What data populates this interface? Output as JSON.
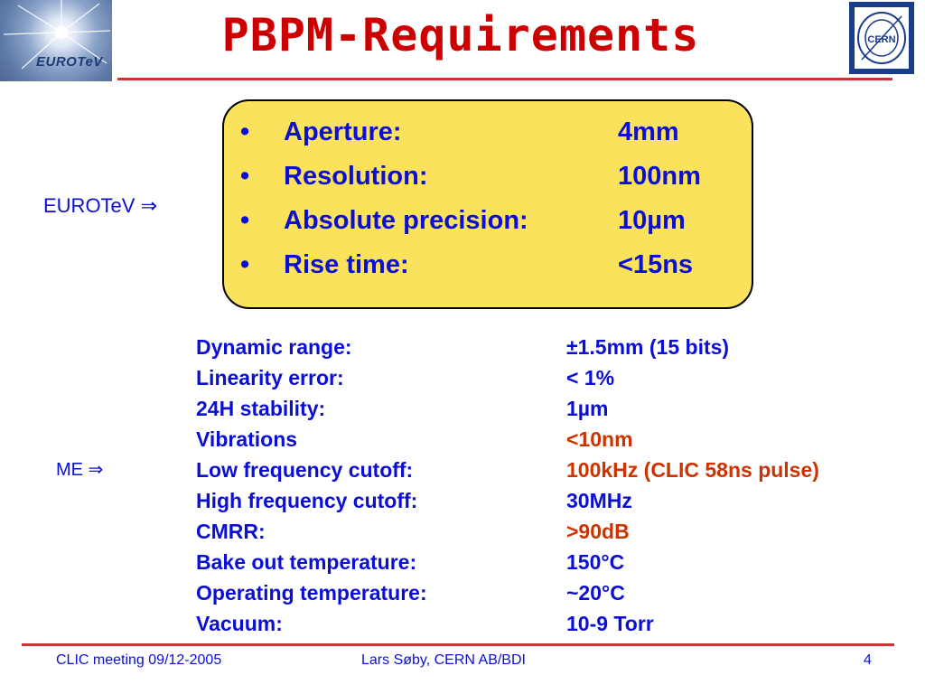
{
  "title": "PBPM-Requirements",
  "logos": {
    "left": "EUROTeV",
    "right": "CERN"
  },
  "labels": {
    "eurotev": "EUROTeV ⇒",
    "me": "ME ⇒"
  },
  "requirements": [
    {
      "bullet": "•",
      "label": "Aperture:",
      "value": "4mm"
    },
    {
      "bullet": "•",
      "label": "Resolution:",
      "value": "100nm"
    },
    {
      "bullet": "•",
      "label": "Absolute precision:",
      "value": "10µm"
    },
    {
      "bullet": "•",
      "label": "Rise time:",
      "value": "<15ns"
    }
  ],
  "specs": [
    {
      "label": "Dynamic range:",
      "value": "±1.5mm (15 bits)",
      "highlight": false
    },
    {
      "label": "Linearity error:",
      "value": "< 1%",
      "highlight": false
    },
    {
      "label": "24H stability:",
      "value": "1µm",
      "highlight": false
    },
    {
      "label": "Vibrations",
      "value": "<10nm",
      "highlight": true
    },
    {
      "label": "Low frequency cutoff:",
      "value": "100kHz (CLIC 58ns pulse)",
      "highlight": true
    },
    {
      "label": "High frequency cutoff:",
      "value": "30MHz",
      "highlight": false
    },
    {
      "label": "CMRR:",
      "value": ">90dB",
      "highlight": true
    },
    {
      "label": "Bake out temperature:",
      "value": "150°C",
      "highlight": false
    },
    {
      "label": "Operating temperature:",
      "value": "~20°C",
      "highlight": false
    },
    {
      "label": "Vacuum:",
      "value": "10-9 Torr",
      "highlight": false
    }
  ],
  "footer": {
    "left": "CLIC meeting 09/12-2005",
    "center": "Lars Søby, CERN AB/BDI",
    "page": "4"
  },
  "colors": {
    "title": "#cc0000",
    "text": "#0b0fd6",
    "highlight": "#cc3300",
    "box": "#fbe25c",
    "rule": "#cc3333"
  }
}
